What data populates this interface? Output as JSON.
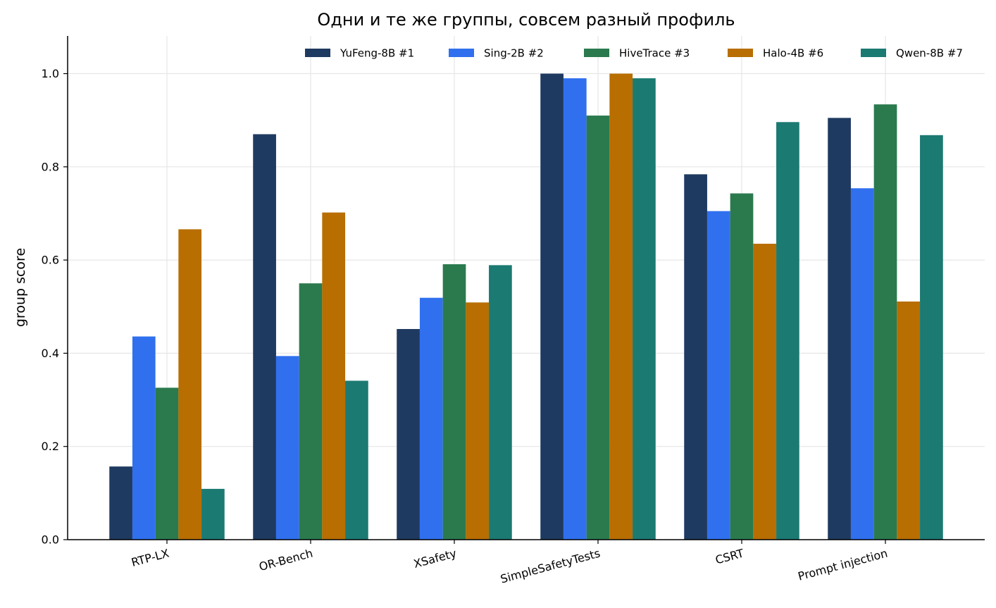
{
  "chart_data": {
    "type": "bar",
    "title": "Одни и те же группы, совсем разный профиль",
    "xlabel": "",
    "ylabel": "group score",
    "ylim": [
      0,
      1.08
    ],
    "yticks": [
      0.0,
      0.2,
      0.4,
      0.6,
      0.8,
      1.0
    ],
    "ytick_labels": [
      "0.0",
      "0.2",
      "0.4",
      "0.6",
      "0.8",
      "1.0"
    ],
    "grid": true,
    "legend_position": "top-right",
    "categories": [
      "RTP-LX",
      "OR-Bench",
      "XSafety",
      "SimpleSafetyTests",
      "CSRT",
      "Prompt injection"
    ],
    "series": [
      {
        "name": "YuFeng-8B #1",
        "color": "#1f3a60",
        "values": [
          0.157,
          0.87,
          0.452,
          1.0,
          0.784,
          0.905
        ]
      },
      {
        "name": "Sing-2B #2",
        "color": "#3070ee",
        "values": [
          0.436,
          0.394,
          0.519,
          0.99,
          0.705,
          0.754
        ]
      },
      {
        "name": "HiveTrace #3",
        "color": "#2b7a4e",
        "values": [
          0.326,
          0.55,
          0.591,
          0.91,
          0.743,
          0.934
        ]
      },
      {
        "name": "Halo-4B #6",
        "color": "#b86e00",
        "values": [
          0.666,
          0.702,
          0.509,
          1.0,
          0.635,
          0.511
        ]
      },
      {
        "name": "Qwen-8B #7",
        "color": "#1b7a72",
        "values": [
          0.109,
          0.341,
          0.589,
          0.99,
          0.896,
          0.868
        ]
      }
    ]
  }
}
